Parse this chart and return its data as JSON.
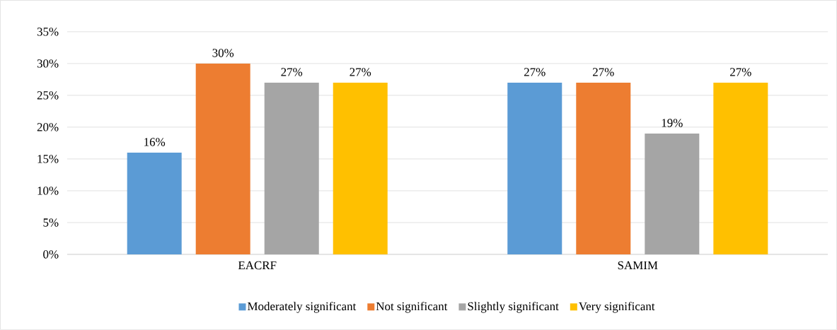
{
  "chart_data": {
    "type": "bar",
    "categories": [
      "EACRF",
      "SAMIM"
    ],
    "series": [
      {
        "name": "Moderately significant",
        "color": "#5b9bd5",
        "values": [
          16,
          27
        ],
        "value_labels": [
          "16%",
          "27%"
        ]
      },
      {
        "name": "Not significant",
        "color": "#ed7d31",
        "values": [
          30,
          27
        ],
        "value_labels": [
          "30%",
          "27%"
        ]
      },
      {
        "name": "Slightly significant",
        "color": "#a5a5a5",
        "values": [
          27,
          19
        ],
        "value_labels": [
          "27%",
          "19%"
        ]
      },
      {
        "name": "Very significant",
        "color": "#ffc000",
        "values": [
          27,
          27
        ],
        "value_labels": [
          "27%",
          "27%"
        ]
      }
    ],
    "ylim": [
      0,
      35
    ],
    "yticks": [
      {
        "value": 0,
        "label": "0%"
      },
      {
        "value": 5,
        "label": "5%"
      },
      {
        "value": 10,
        "label": "10%"
      },
      {
        "value": 15,
        "label": "15%"
      },
      {
        "value": 20,
        "label": "20%"
      },
      {
        "value": 25,
        "label": "25%"
      },
      {
        "value": 30,
        "label": "30%"
      },
      {
        "value": 35,
        "label": "35%"
      }
    ],
    "grid": "y",
    "legend": "bottom"
  }
}
